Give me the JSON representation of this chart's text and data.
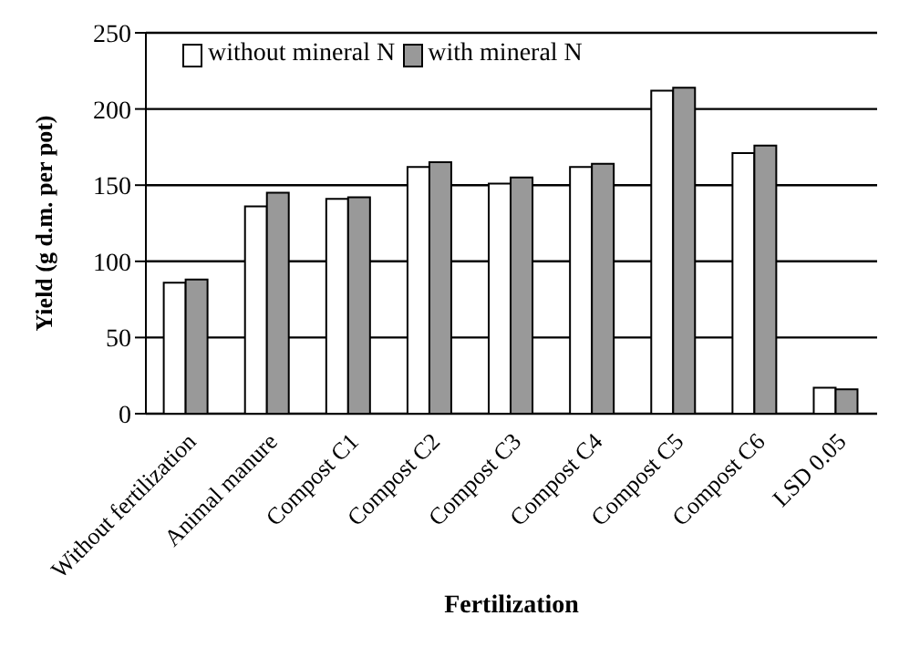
{
  "chart_data": {
    "type": "bar",
    "xlabel": "Fertilization",
    "ylabel": "Yield (g d.m. per pot)",
    "categories": [
      "Without fertilization",
      "Animal manure",
      "Compost C1",
      "Compost C2",
      "Compost C3",
      "Compost C4",
      "Compost C5",
      "Compost C6",
      "LSD 0.05"
    ],
    "series": [
      {
        "name": "without mineral N",
        "color": "#ffffff",
        "values": [
          86,
          136,
          141,
          162,
          151,
          162,
          212,
          171,
          17
        ]
      },
      {
        "name": "with mineral N",
        "color": "#999999",
        "values": [
          88,
          145,
          142,
          165,
          155,
          164,
          214,
          176,
          16
        ]
      }
    ],
    "ylim": [
      0,
      250
    ],
    "yticks": [
      0,
      50,
      100,
      150,
      200,
      250
    ],
    "grid": "y",
    "legend": "top left"
  }
}
